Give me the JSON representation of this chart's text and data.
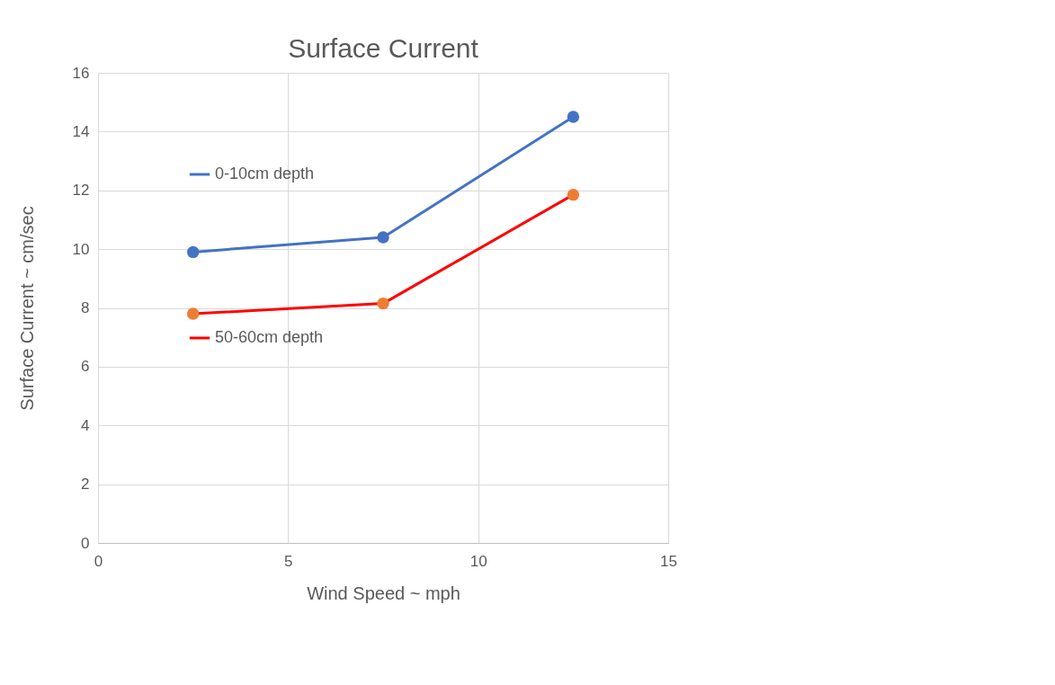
{
  "chart_data": {
    "type": "line",
    "title": "Surface Current",
    "xlabel": "Wind Speed ~ mph",
    "ylabel": "Surface Current ~ cm/sec",
    "x": [
      2.5,
      7.5,
      12.5
    ],
    "series": [
      {
        "name": "0-10cm depth",
        "color": "#4472c4",
        "colors": [
          "#4472c4",
          "#4472c4",
          "#4472c4"
        ],
        "values": [
          9.9,
          10.4,
          14.5
        ]
      },
      {
        "name": "50-60cm depth",
        "color": "#ff0000",
        "colors": [
          "#ed7d31",
          "#ed7d31",
          "#ed7d31"
        ],
        "values": [
          7.8,
          8.15,
          11.85
        ]
      }
    ],
    "xlim": [
      0,
      15
    ],
    "xticks": [
      0,
      5,
      10,
      15
    ],
    "ylim": [
      0,
      16
    ],
    "yticks": [
      0,
      2,
      4,
      6,
      8,
      10,
      12,
      14,
      16
    ],
    "grid": true,
    "legend": "top left",
    "marker": "circle",
    "line_style": "solid"
  }
}
